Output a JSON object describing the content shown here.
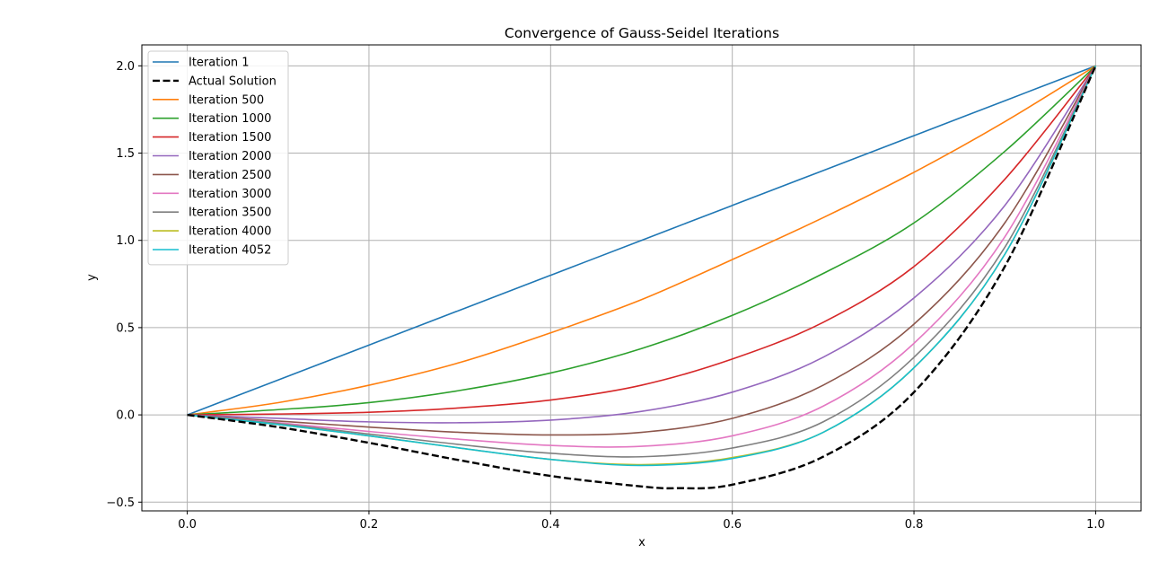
{
  "chart_data": {
    "type": "line",
    "title": "Convergence of Gauss-Seidel Iterations",
    "xlabel": "x",
    "ylabel": "y",
    "xlim": [
      -0.05,
      1.05
    ],
    "ylim": [
      -0.55,
      2.12
    ],
    "xticks": [
      "0.0",
      "0.2",
      "0.4",
      "0.6",
      "0.8",
      "1.0"
    ],
    "yticks": [
      "−0.5",
      "0.0",
      "0.5",
      "1.0",
      "1.5",
      "2.0"
    ],
    "grid": true,
    "legend_position": "upper-left",
    "series": [
      {
        "name": "Iteration 1",
        "color": "#1f77b4",
        "dashed": false,
        "x": [
          0.0,
          0.1,
          0.2,
          0.3,
          0.4,
          0.5,
          0.6,
          0.7,
          0.8,
          0.9,
          1.0
        ],
        "y": [
          0.0,
          0.2,
          0.4,
          0.6,
          0.8,
          1.0,
          1.2,
          1.4,
          1.6,
          1.8,
          2.0
        ]
      },
      {
        "name": "Actual Solution",
        "color": "#000000",
        "dashed": true,
        "x": [
          0.0,
          0.1,
          0.2,
          0.3,
          0.4,
          0.5,
          0.54,
          0.6,
          0.7,
          0.8,
          0.9,
          1.0
        ],
        "y": [
          0.0,
          -0.07,
          -0.16,
          -0.26,
          -0.35,
          -0.41,
          -0.42,
          -0.4,
          -0.24,
          0.13,
          0.85,
          2.0
        ]
      },
      {
        "name": "Iteration 500",
        "color": "#ff7f0e",
        "dashed": false,
        "x": [
          0.0,
          0.1,
          0.2,
          0.3,
          0.4,
          0.5,
          0.6,
          0.7,
          0.8,
          0.9,
          1.0
        ],
        "y": [
          0.0,
          0.07,
          0.17,
          0.3,
          0.47,
          0.66,
          0.89,
          1.13,
          1.39,
          1.68,
          2.0
        ]
      },
      {
        "name": "Iteration 1000",
        "color": "#2ca02c",
        "dashed": false,
        "x": [
          0.0,
          0.1,
          0.2,
          0.3,
          0.4,
          0.5,
          0.6,
          0.7,
          0.8,
          0.9,
          1.0
        ],
        "y": [
          0.0,
          0.03,
          0.07,
          0.14,
          0.24,
          0.38,
          0.57,
          0.81,
          1.1,
          1.51,
          2.0
        ]
      },
      {
        "name": "Iteration 1500",
        "color": "#d62728",
        "dashed": false,
        "x": [
          0.0,
          0.1,
          0.2,
          0.3,
          0.4,
          0.5,
          0.6,
          0.7,
          0.8,
          0.9,
          1.0
        ],
        "y": [
          0.0,
          0.005,
          0.015,
          0.04,
          0.085,
          0.17,
          0.32,
          0.53,
          0.85,
          1.35,
          2.0
        ]
      },
      {
        "name": "Iteration 2000",
        "color": "#9467bd",
        "dashed": false,
        "x": [
          0.0,
          0.1,
          0.2,
          0.3,
          0.4,
          0.5,
          0.6,
          0.7,
          0.8,
          0.9,
          1.0
        ],
        "y": [
          0.0,
          -0.02,
          -0.04,
          -0.045,
          -0.03,
          0.02,
          0.13,
          0.33,
          0.67,
          1.2,
          2.0
        ]
      },
      {
        "name": "Iteration 2500",
        "color": "#8c564b",
        "dashed": false,
        "x": [
          0.0,
          0.1,
          0.2,
          0.3,
          0.4,
          0.5,
          0.6,
          0.7,
          0.8,
          0.9,
          1.0
        ],
        "y": [
          0.0,
          -0.035,
          -0.07,
          -0.1,
          -0.115,
          -0.1,
          -0.02,
          0.17,
          0.52,
          1.1,
          2.0
        ]
      },
      {
        "name": "Iteration 3000",
        "color": "#e377c2",
        "dashed": false,
        "x": [
          0.0,
          0.1,
          0.2,
          0.3,
          0.4,
          0.5,
          0.6,
          0.7,
          0.8,
          0.9,
          1.0
        ],
        "y": [
          0.0,
          -0.045,
          -0.095,
          -0.14,
          -0.175,
          -0.18,
          -0.12,
          0.05,
          0.41,
          1.02,
          2.0
        ]
      },
      {
        "name": "Iteration 3500",
        "color": "#7f7f7f",
        "dashed": false,
        "x": [
          0.0,
          0.1,
          0.2,
          0.3,
          0.4,
          0.5,
          0.6,
          0.7,
          0.8,
          0.9,
          1.0
        ],
        "y": [
          0.0,
          -0.05,
          -0.11,
          -0.17,
          -0.22,
          -0.24,
          -0.19,
          -0.04,
          0.33,
          0.96,
          2.0
        ]
      },
      {
        "name": "Iteration 4000",
        "color": "#bcbd22",
        "dashed": false,
        "x": [
          0.0,
          0.1,
          0.2,
          0.3,
          0.4,
          0.5,
          0.6,
          0.7,
          0.8,
          0.9,
          1.0
        ],
        "y": [
          0.0,
          -0.055,
          -0.12,
          -0.19,
          -0.255,
          -0.285,
          -0.245,
          -0.1,
          0.27,
          0.92,
          2.0
        ]
      },
      {
        "name": "Iteration 4052",
        "color": "#17becf",
        "dashed": false,
        "x": [
          0.0,
          0.1,
          0.2,
          0.3,
          0.4,
          0.5,
          0.6,
          0.7,
          0.8,
          0.9,
          1.0
        ],
        "y": [
          0.0,
          -0.055,
          -0.12,
          -0.19,
          -0.255,
          -0.29,
          -0.25,
          -0.1,
          0.27,
          0.92,
          2.0
        ]
      }
    ]
  }
}
